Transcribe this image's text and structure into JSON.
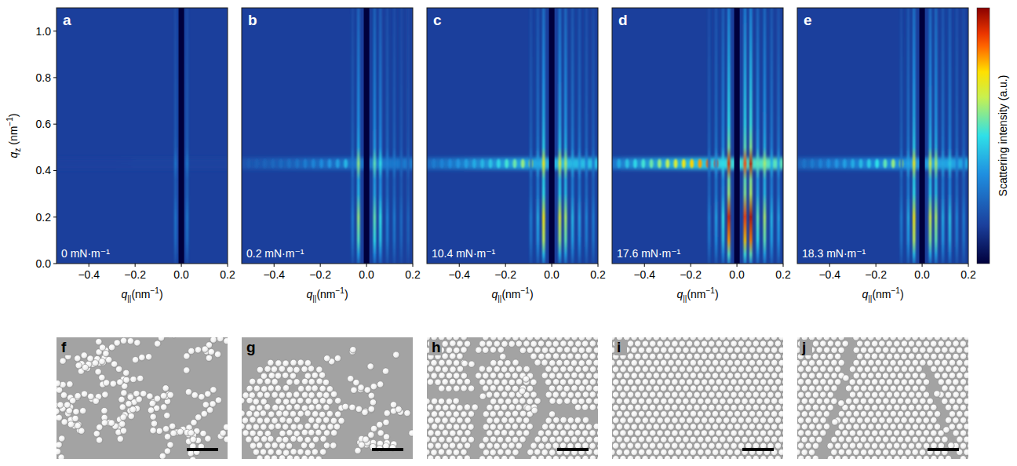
{
  "chart_data": [
    {
      "type": "heatmap",
      "panel": "a",
      "annotation": "0 mN·m⁻¹",
      "xlabel": [
        "q",
        "||",
        "(nm",
        "−1",
        ")"
      ],
      "ylabel": [
        "q",
        "z",
        " (nm",
        "−1",
        ")"
      ],
      "xlim": [
        -0.54,
        0.2
      ],
      "ylim": [
        0,
        1.1
      ],
      "xticks": [
        {
          "value": -0.4,
          "label": "−0.4"
        },
        {
          "value": -0.2,
          "label": "−0.2"
        },
        {
          "value": 0,
          "label": "0.0"
        },
        {
          "value": 0.2,
          "label": "0.2"
        }
      ],
      "yticks": [
        {
          "value": 0,
          "label": "0.0"
        },
        {
          "value": 0.2,
          "label": "0.2"
        },
        {
          "value": 0.4,
          "label": "0.4"
        },
        {
          "value": 0.6,
          "label": "0.6"
        },
        {
          "value": 0.8,
          "label": "0.8"
        },
        {
          "value": 1.0,
          "label": "1.0"
        }
      ],
      "tick_labels": true,
      "beamstop_q": [
        -0.012,
        0.012
      ],
      "band_qz": 0.43,
      "band_intensity": 0.16,
      "rods": [
        {
          "q": -0.025,
          "intensity": 0.28
        },
        {
          "q": 0.025,
          "intensity": 0.28
        }
      ],
      "band_peaks": {
        "q": [],
        "intensity": []
      }
    },
    {
      "type": "heatmap",
      "panel": "b",
      "annotation": "0.2 mN·m⁻¹",
      "xlabel": [
        "q",
        "||",
        "(nm",
        "−1",
        ")"
      ],
      "xlim": [
        -0.54,
        0.2
      ],
      "ylim": [
        0,
        1.1
      ],
      "xticks": [
        {
          "value": -0.4,
          "label": "−0.4"
        },
        {
          "value": -0.2,
          "label": "−0.2"
        },
        {
          "value": 0,
          "label": "0.0"
        },
        {
          "value": 0.2,
          "label": "0.2"
        }
      ],
      "tick_labels": "x",
      "beamstop_q": [
        -0.012,
        0.012
      ],
      "band_qz": 0.43,
      "band_intensity": 0.3,
      "rods": [
        {
          "q": -0.06,
          "intensity": 0.3
        },
        {
          "q": -0.035,
          "intensity": 0.6
        },
        {
          "q": 0.035,
          "intensity": 0.55
        },
        {
          "q": 0.06,
          "intensity": 0.5
        },
        {
          "q": 0.09,
          "intensity": 0.32
        },
        {
          "q": 0.12,
          "intensity": 0.3
        },
        {
          "q": 0.15,
          "intensity": 0.26
        },
        {
          "q": 0.18,
          "intensity": 0.24
        }
      ],
      "band_peaks": {
        "q": [
          -0.51,
          -0.475,
          -0.44,
          -0.405,
          -0.37,
          -0.335,
          -0.3,
          -0.265,
          -0.23,
          -0.195,
          -0.16,
          -0.125,
          -0.09
        ],
        "intensity": [
          0.22,
          0.23,
          0.24,
          0.25,
          0.26,
          0.27,
          0.28,
          0.3,
          0.32,
          0.34,
          0.36,
          0.38,
          0.42
        ]
      }
    },
    {
      "type": "heatmap",
      "panel": "c",
      "annotation": "10.4 mN·m⁻¹",
      "xlabel": [
        "q",
        "||",
        "(nm",
        "−1",
        ")"
      ],
      "xlim": [
        -0.54,
        0.2
      ],
      "ylim": [
        0,
        1.1
      ],
      "xticks": [
        {
          "value": -0.4,
          "label": "−0.4"
        },
        {
          "value": -0.2,
          "label": "−0.2"
        },
        {
          "value": 0,
          "label": "0.0"
        },
        {
          "value": 0.2,
          "label": "0.2"
        }
      ],
      "tick_labels": "x",
      "beamstop_q": [
        -0.012,
        0.012
      ],
      "band_qz": 0.43,
      "band_intensity": 0.45,
      "rods": [
        {
          "q": -0.09,
          "intensity": 0.3
        },
        {
          "q": -0.06,
          "intensity": 0.4
        },
        {
          "q": -0.035,
          "intensity": 0.72
        },
        {
          "q": 0.035,
          "intensity": 0.68
        },
        {
          "q": 0.06,
          "intensity": 0.62
        },
        {
          "q": 0.09,
          "intensity": 0.42
        },
        {
          "q": 0.12,
          "intensity": 0.38
        },
        {
          "q": 0.15,
          "intensity": 0.32
        },
        {
          "q": 0.18,
          "intensity": 0.3
        }
      ],
      "band_peaks": {
        "q": [
          -0.51,
          -0.475,
          -0.44,
          -0.405,
          -0.37,
          -0.335,
          -0.3,
          -0.265,
          -0.23,
          -0.195,
          -0.16,
          -0.125,
          -0.09
        ],
        "intensity": [
          0.3,
          0.32,
          0.34,
          0.36,
          0.38,
          0.4,
          0.42,
          0.45,
          0.48,
          0.52,
          0.56,
          0.6,
          0.66
        ]
      }
    },
    {
      "type": "heatmap",
      "panel": "d",
      "annotation": "17.6 mN·m⁻¹",
      "xlabel": [
        "q",
        "||",
        "(nm",
        "−1",
        ")"
      ],
      "xlim": [
        -0.54,
        0.2
      ],
      "ylim": [
        0,
        1.1
      ],
      "xticks": [
        {
          "value": -0.4,
          "label": "−0.4"
        },
        {
          "value": -0.2,
          "label": "−0.2"
        },
        {
          "value": 0,
          "label": "0.0"
        },
        {
          "value": 0.2,
          "label": "0.2"
        }
      ],
      "tick_labels": "x",
      "beamstop_q": [
        -0.012,
        0.012
      ],
      "band_qz": 0.43,
      "band_intensity": 0.55,
      "rods": [
        {
          "q": -0.12,
          "intensity": 0.3
        },
        {
          "q": -0.09,
          "intensity": 0.38
        },
        {
          "q": -0.06,
          "intensity": 0.5
        },
        {
          "q": -0.035,
          "intensity": 0.92
        },
        {
          "q": 0.035,
          "intensity": 0.88
        },
        {
          "q": 0.06,
          "intensity": 0.95
        },
        {
          "q": 0.09,
          "intensity": 0.55
        },
        {
          "q": 0.12,
          "intensity": 0.62
        },
        {
          "q": 0.15,
          "intensity": 0.42
        },
        {
          "q": 0.18,
          "intensity": 0.38
        }
      ],
      "band_peaks": {
        "q": [
          -0.51,
          -0.475,
          -0.44,
          -0.405,
          -0.37,
          -0.335,
          -0.3,
          -0.265,
          -0.23,
          -0.195,
          -0.16,
          -0.125,
          -0.09
        ],
        "intensity": [
          0.4,
          0.44,
          0.48,
          0.52,
          0.56,
          0.6,
          0.64,
          0.68,
          0.72,
          0.76,
          0.8,
          0.85,
          0.9
        ]
      }
    },
    {
      "type": "heatmap",
      "panel": "e",
      "annotation": "18.3 mN·m⁻¹",
      "xlabel": [
        "q",
        "||",
        "(nm",
        "−1",
        ")"
      ],
      "xlim": [
        -0.54,
        0.2
      ],
      "ylim": [
        0,
        1.1
      ],
      "xticks": [
        {
          "value": -0.4,
          "label": "−0.4"
        },
        {
          "value": -0.2,
          "label": "−0.2"
        },
        {
          "value": 0,
          "label": "0.0"
        },
        {
          "value": 0.2,
          "label": "0.2"
        }
      ],
      "tick_labels": "x",
      "beamstop_q": [
        -0.012,
        0.012
      ],
      "band_qz": 0.43,
      "band_intensity": 0.4,
      "rods": [
        {
          "q": -0.09,
          "intensity": 0.3
        },
        {
          "q": -0.06,
          "intensity": 0.4
        },
        {
          "q": -0.035,
          "intensity": 0.72
        },
        {
          "q": 0.035,
          "intensity": 0.66
        },
        {
          "q": 0.06,
          "intensity": 0.62
        },
        {
          "q": 0.09,
          "intensity": 0.4
        },
        {
          "q": 0.12,
          "intensity": 0.45
        },
        {
          "q": 0.15,
          "intensity": 0.32
        },
        {
          "q": 0.18,
          "intensity": 0.3
        }
      ],
      "band_peaks": {
        "q": [
          -0.51,
          -0.475,
          -0.44,
          -0.405,
          -0.37,
          -0.335,
          -0.3,
          -0.265,
          -0.23,
          -0.195,
          -0.16,
          -0.125,
          -0.09
        ],
        "intensity": [
          0.28,
          0.3,
          0.32,
          0.34,
          0.36,
          0.38,
          0.4,
          0.43,
          0.46,
          0.5,
          0.55,
          0.6,
          0.65
        ]
      }
    }
  ],
  "colorbar": {
    "label": "Scattering intensity (a.u.)",
    "range": [
      0,
      1
    ]
  },
  "images": [
    {
      "letter": "f"
    },
    {
      "letter": "g"
    },
    {
      "letter": "h"
    },
    {
      "letter": "i"
    },
    {
      "letter": "j"
    }
  ]
}
